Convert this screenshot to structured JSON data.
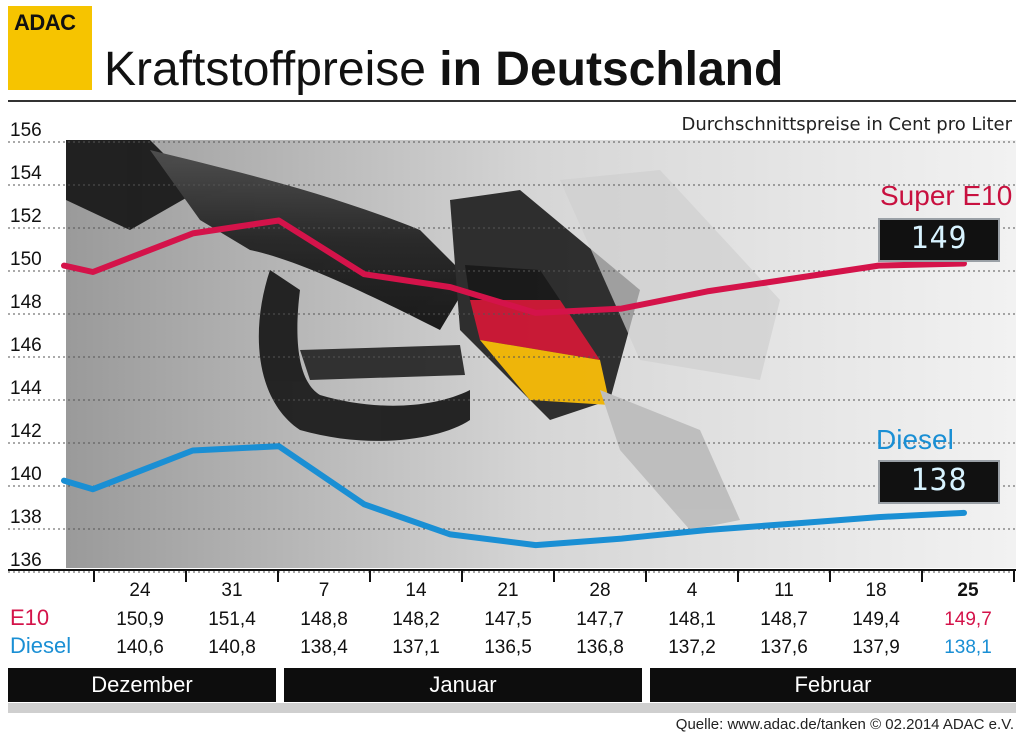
{
  "brand": "ADAC",
  "title_light": "Kraftstoffpreise",
  "title_bold": "in Deutschland",
  "subtitle": "Durchschnittspreise in Cent pro Liter",
  "row_labels": {
    "e10": "E10",
    "diesel": "Diesel"
  },
  "series_labels": {
    "e10": "Super E10",
    "diesel": "Diesel"
  },
  "displays": {
    "e10": "149",
    "diesel": "138"
  },
  "months": [
    "Dezember",
    "Januar",
    "Februar"
  ],
  "source": "Quelle: www.adac.de/tanken   © 02.2014  ADAC e.V.",
  "colors": {
    "e10": "#d4134a",
    "diesel": "#1a8fd4",
    "accent": "#f6c400"
  },
  "chart_data": {
    "type": "line",
    "categories": [
      "24",
      "31",
      "7",
      "14",
      "21",
      "28",
      "4",
      "11",
      "18",
      "25"
    ],
    "yticks": [
      136,
      138,
      140,
      142,
      144,
      146,
      148,
      150,
      152,
      154,
      156
    ],
    "ylim": [
      136,
      156
    ],
    "grid": true,
    "series": [
      {
        "name": "Super E10",
        "values": [
          150.9,
          151.4,
          148.8,
          148.2,
          147.5,
          147.7,
          148.1,
          148.7,
          149.4,
          149.7
        ]
      },
      {
        "name": "Diesel",
        "values": [
          140.6,
          140.8,
          138.4,
          137.1,
          136.5,
          136.8,
          137.2,
          137.6,
          137.9,
          138.1
        ]
      }
    ],
    "line_e10": [
      149.6,
      149.3,
      151.1,
      151.7,
      149.2,
      148.6,
      147.4,
      147.6,
      148.4,
      149.0,
      149.6,
      149.7
    ],
    "line_diesel": [
      139.6,
      139.2,
      141.0,
      141.2,
      138.5,
      137.1,
      136.6,
      136.9,
      137.3,
      137.6,
      137.9,
      138.1
    ],
    "line_x_pct": [
      0,
      4.6,
      20.5,
      34.2,
      47.8,
      61.5,
      75.1,
      88.8,
      102.4,
      116.1,
      129.7,
      143.3
    ]
  }
}
